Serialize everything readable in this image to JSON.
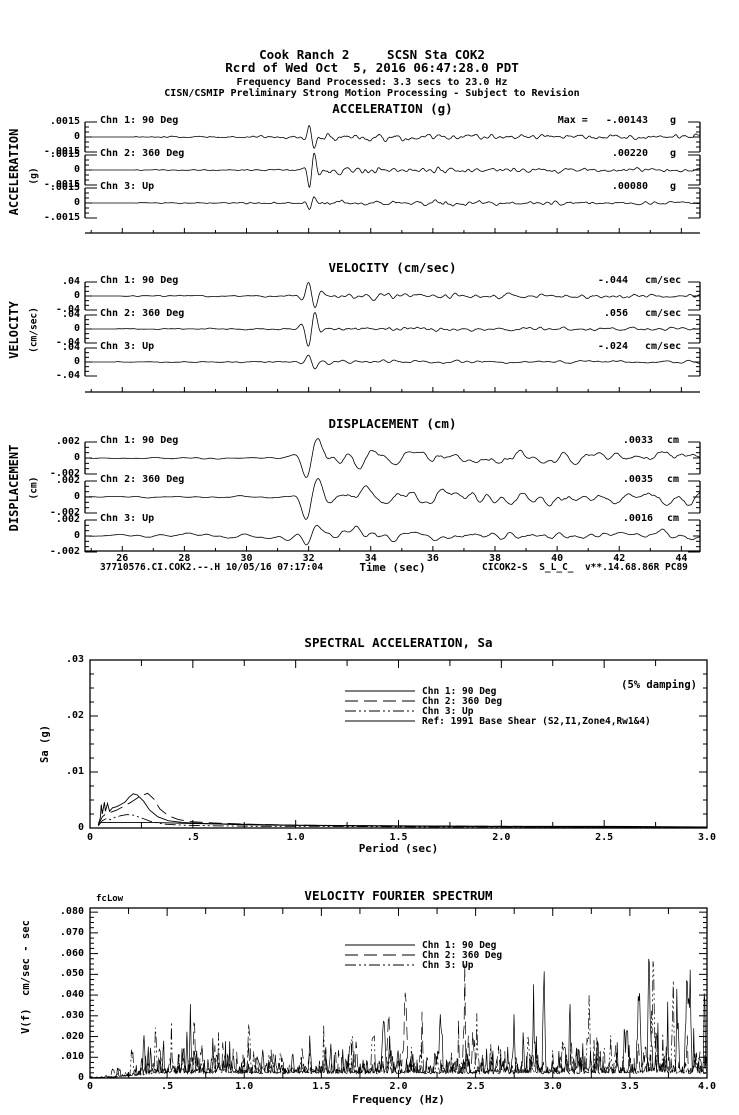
{
  "header": {
    "line1": "Cook Ranch 2     SCSN Sta COK2",
    "line2": "Rcrd of Wed Oct  5, 2016 06:47:28.0 PDT",
    "line3": "Frequency Band Processed: 3.3 secs to 23.0 Hz",
    "line4": "CISN/CSMIP Preliminary Strong Motion Processing - Subject to Revision"
  },
  "footer": {
    "left": "37710576.CI.COK2.--.H 10/05/16 07:17:04",
    "right": "CICOK2-S  S_L_C_  v**.14.68.86R PC89"
  },
  "colors": {
    "ink": "#000000",
    "paper": "#ffffff"
  },
  "chart_data": [
    {
      "id": "acceleration",
      "type": "line",
      "title": "ACCELERATION (g)",
      "side_label": "ACCELERATION",
      "side_unit": "(g)",
      "yamp": 0.0015,
      "ylabels": {
        "pos": ".0015",
        "zero": "0",
        "neg": "-.0015"
      },
      "xlim": [
        24.8,
        44.6
      ],
      "event_time_sec": 32.1,
      "channels": [
        {
          "label": "Chn 1: 90 Deg",
          "max_text": "Max =   -.00143",
          "unit": "g",
          "max_value": -0.00143,
          "peak": 0.00143,
          "pre": 0.00018,
          "coda": 0.00045,
          "sign": -1,
          "seed": 101
        },
        {
          "label": "Chn 2: 360 Deg",
          "max_text": ".00220",
          "unit": "g",
          "max_value": 0.0022,
          "peak": 0.0022,
          "pre": 0.00015,
          "coda": 0.00042,
          "sign": 1,
          "seed": 102
        },
        {
          "label": "Chn 3: Up",
          "max_text": ".00080",
          "unit": "g",
          "max_value": 0.0008,
          "peak": 0.0008,
          "pre": 0.00013,
          "coda": 0.00028,
          "sign": 1,
          "seed": 103
        }
      ]
    },
    {
      "id": "velocity",
      "type": "line",
      "title": "VELOCITY (cm/sec)",
      "side_label": "VELOCITY",
      "side_unit": "(cm/sec)",
      "yamp": 0.04,
      "ylabels": {
        "pos": ".04",
        "zero": "0",
        "neg": "-.04"
      },
      "xlim": [
        24.8,
        44.6
      ],
      "event_time_sec": 32.1,
      "channels": [
        {
          "label": "Chn 1: 90 Deg",
          "max_text": "-.044",
          "unit": "cm/sec",
          "max_value": -0.044,
          "peak": 0.044,
          "pre": 0.004,
          "coda": 0.013,
          "sign": -1,
          "seed": 201
        },
        {
          "label": "Chn 2: 360 Deg",
          "max_text": ".056",
          "unit": "cm/sec",
          "max_value": 0.056,
          "peak": 0.056,
          "pre": 0.0035,
          "coda": 0.012,
          "sign": 1,
          "seed": 202
        },
        {
          "label": "Chn 3: Up",
          "max_text": "-.024",
          "unit": "cm/sec",
          "max_value": -0.024,
          "peak": 0.024,
          "pre": 0.003,
          "coda": 0.006,
          "sign": -1,
          "seed": 203
        }
      ]
    },
    {
      "id": "displacement",
      "type": "line",
      "title": "DISPLACEMENT (cm)",
      "side_label": "DISPLACEMENT",
      "side_unit": "(cm)",
      "yamp": 0.002,
      "ylabels": {
        "pos": ".002",
        "zero": "0",
        "neg": "-.002"
      },
      "xlim": [
        24.8,
        44.6
      ],
      "event_time_sec": 32.1,
      "xlabel": "Time (sec)",
      "xticks": [
        {
          "v": 26,
          "label": "26"
        },
        {
          "v": 28,
          "label": "28"
        },
        {
          "v": 30,
          "label": "30"
        },
        {
          "v": 32,
          "label": "32"
        },
        {
          "v": 34,
          "label": "34"
        },
        {
          "v": 36,
          "label": "36"
        },
        {
          "v": 38,
          "label": "38"
        },
        {
          "v": 40,
          "label": "40"
        },
        {
          "v": 42,
          "label": "42"
        },
        {
          "v": 44,
          "label": "44"
        }
      ],
      "channels": [
        {
          "label": "Chn 1: 90 Deg",
          "max_text": ".0033",
          "unit": "cm",
          "max_value": 0.0033,
          "peak": 0.0033,
          "pre": 0.0002,
          "coda": 0.0018,
          "sign": 1,
          "seed": 301
        },
        {
          "label": "Chn 2: 360 Deg",
          "max_text": ".0035",
          "unit": "cm",
          "max_value": 0.0035,
          "peak": 0.0035,
          "pre": 0.0002,
          "coda": 0.0018,
          "sign": 1,
          "seed": 302
        },
        {
          "label": "Chn 3: Up",
          "max_text": ".0016",
          "unit": "cm",
          "max_value": 0.0016,
          "peak": 0.0016,
          "pre": 0.0006,
          "coda": 0.0009,
          "sign": 1,
          "seed": 303
        }
      ]
    },
    {
      "id": "spectral_acceleration",
      "type": "line",
      "title": "SPECTRAL ACCELERATION, Sa",
      "damping_note": "(5% damping)",
      "ylabel": "Sa (g)",
      "xlabel": "Period (sec)",
      "xlim": [
        0,
        3.0
      ],
      "ylim": [
        0,
        0.03
      ],
      "yticks": [
        {
          "v": 0.03,
          "label": ".03"
        },
        {
          "v": 0.02,
          "label": ".02"
        },
        {
          "v": 0.01,
          "label": ".01"
        },
        {
          "v": 0,
          "label": "0"
        }
      ],
      "xticks": [
        {
          "v": 0,
          "label": "0"
        },
        {
          "v": 0.5,
          "label": ".5"
        },
        {
          "v": 1.0,
          "label": "1.0"
        },
        {
          "v": 1.5,
          "label": "1.5"
        },
        {
          "v": 2.0,
          "label": "2.0"
        },
        {
          "v": 2.5,
          "label": "2.5"
        },
        {
          "v": 3.0,
          "label": "3.0"
        }
      ],
      "series": [
        {
          "name": "Chn 1: 90 Deg",
          "dash": "solid",
          "points": [
            [
              0.04,
              0.0006
            ],
            [
              0.05,
              0.0018
            ],
            [
              0.055,
              0.0042
            ],
            [
              0.06,
              0.0025
            ],
            [
              0.07,
              0.0046
            ],
            [
              0.075,
              0.003
            ],
            [
              0.085,
              0.0044
            ],
            [
              0.095,
              0.003
            ],
            [
              0.11,
              0.0036
            ],
            [
              0.13,
              0.0038
            ],
            [
              0.15,
              0.0042
            ],
            [
              0.17,
              0.0046
            ],
            [
              0.19,
              0.0055
            ],
            [
              0.21,
              0.0061
            ],
            [
              0.23,
              0.0059
            ],
            [
              0.26,
              0.0048
            ],
            [
              0.29,
              0.0032
            ],
            [
              0.33,
              0.002
            ],
            [
              0.38,
              0.0013
            ],
            [
              0.45,
              0.001
            ],
            [
              0.55,
              0.0008
            ],
            [
              0.7,
              0.0006
            ],
            [
              0.9,
              0.0005
            ],
            [
              1.2,
              0.0004
            ],
            [
              1.6,
              0.0003
            ],
            [
              2.2,
              0.0002
            ],
            [
              3.0,
              0.0002
            ]
          ]
        },
        {
          "name": "Chn 2: 360 Deg",
          "dash": "dash",
          "points": [
            [
              0.04,
              0.0005
            ],
            [
              0.06,
              0.002
            ],
            [
              0.08,
              0.0026
            ],
            [
              0.1,
              0.0028
            ],
            [
              0.13,
              0.0032
            ],
            [
              0.16,
              0.0038
            ],
            [
              0.2,
              0.0046
            ],
            [
              0.24,
              0.0056
            ],
            [
              0.28,
              0.0062
            ],
            [
              0.31,
              0.0052
            ],
            [
              0.34,
              0.0034
            ],
            [
              0.38,
              0.0022
            ],
            [
              0.43,
              0.0015
            ],
            [
              0.5,
              0.0011
            ],
            [
              0.6,
              0.0009
            ],
            [
              0.75,
              0.0007
            ],
            [
              1.0,
              0.0005
            ],
            [
              1.4,
              0.0004
            ],
            [
              2.0,
              0.0003
            ],
            [
              2.6,
              0.0002
            ],
            [
              3.0,
              0.0002
            ]
          ]
        },
        {
          "name": "Chn 3: Up",
          "dash": "dashdot",
          "points": [
            [
              0.04,
              0.0004
            ],
            [
              0.06,
              0.0013
            ],
            [
              0.08,
              0.0017
            ],
            [
              0.1,
              0.0015
            ],
            [
              0.12,
              0.0019
            ],
            [
              0.15,
              0.0022
            ],
            [
              0.18,
              0.0024
            ],
            [
              0.21,
              0.0023
            ],
            [
              0.25,
              0.0018
            ],
            [
              0.3,
              0.0011
            ],
            [
              0.36,
              0.0007
            ],
            [
              0.45,
              0.0005
            ],
            [
              0.6,
              0.0004
            ],
            [
              0.8,
              0.0003
            ],
            [
              1.1,
              0.0003
            ],
            [
              1.6,
              0.0002
            ],
            [
              2.2,
              0.0002
            ],
            [
              3.0,
              0.0001
            ]
          ]
        },
        {
          "name": "Ref: 1991 Base Shear (S2,I1,Zone4,Rw1&4)",
          "dash": "solid",
          "points": [
            [
              0.05,
              0.001
            ],
            [
              0.15,
              0.001
            ],
            [
              0.3,
              0.001
            ],
            [
              0.5,
              0.0008
            ],
            [
              0.7,
              0.0007
            ],
            [
              1.0,
              0.0005
            ],
            [
              1.5,
              0.0004
            ],
            [
              2.0,
              0.0003
            ],
            [
              2.5,
              0.0003
            ],
            [
              3.0,
              0.0002
            ]
          ]
        }
      ]
    },
    {
      "id": "velocity_fourier_spectrum",
      "type": "line",
      "title": "VELOCITY FOURIER SPECTRUM",
      "corner_label": "fcLow",
      "ylabel": "V(f)  cm/sec - sec",
      "xlabel": "Frequency (Hz)",
      "xlim": [
        0,
        4.0
      ],
      "ylim": [
        0,
        0.082
      ],
      "yticks": [
        {
          "v": 0.08,
          "label": ".080"
        },
        {
          "v": 0.07,
          "label": ".070"
        },
        {
          "v": 0.06,
          "label": ".060"
        },
        {
          "v": 0.05,
          "label": ".050"
        },
        {
          "v": 0.04,
          "label": ".040"
        },
        {
          "v": 0.03,
          "label": ".030"
        },
        {
          "v": 0.02,
          "label": ".020"
        },
        {
          "v": 0.01,
          "label": ".010"
        },
        {
          "v": 0,
          "label": "0"
        }
      ],
      "xticks": [
        {
          "v": 0,
          "label": "0"
        },
        {
          "v": 0.5,
          "label": ".5"
        },
        {
          "v": 1.0,
          "label": "1.0"
        },
        {
          "v": 1.5,
          "label": "1.5"
        },
        {
          "v": 2.0,
          "label": "2.0"
        },
        {
          "v": 2.5,
          "label": "2.5"
        },
        {
          "v": 3.0,
          "label": "3.0"
        },
        {
          "v": 3.5,
          "label": "3.5"
        },
        {
          "v": 4.0,
          "label": "4.0"
        }
      ],
      "series_style": [
        {
          "name": "Chn 1: 90 Deg",
          "dash": "solid",
          "seed": 5,
          "amp": 1.0
        },
        {
          "name": "Chn 2: 360 Deg",
          "dash": "dash",
          "seed": 11,
          "amp": 1.0
        },
        {
          "name": "Chn 3: Up",
          "dash": "dashdot",
          "seed": 23,
          "amp": 0.82
        }
      ],
      "peak_value": 0.065
    }
  ]
}
